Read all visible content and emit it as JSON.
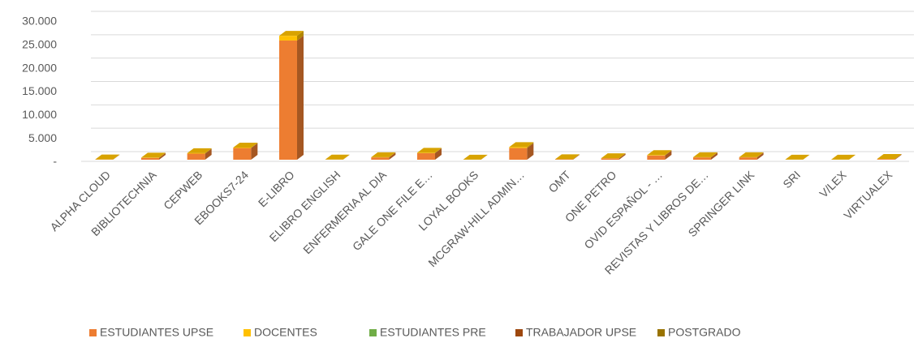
{
  "chart_data": {
    "type": "bar3d_stacked",
    "categories": [
      "ALPHA CLOUD",
      "BIBLIOTECHNIA",
      "CEPWEB",
      "EBOOKS7-24",
      "E-LIBRO",
      "ELIBRO ENGLISH",
      "ENFERMERIA AL DIA",
      "GALE ONE FILE E…",
      "LOYAL BOOKS",
      "MCGRAW-HILL ADMIN…",
      "OMT",
      "ONE PETRO",
      "OVID ESPAÑOL - …",
      "REVISTAS Y LIBROS DE…",
      "SPRINGER LINK",
      "SRI",
      "V/LEX",
      "VIRTUALEX"
    ],
    "series": [
      {
        "name": "ESTUDIANTES UPSE",
        "color": "#ed7d31",
        "values": [
          50,
          400,
          1300,
          2500,
          25500,
          30,
          500,
          1400,
          20,
          2500,
          100,
          300,
          900,
          500,
          500,
          10,
          10,
          150
        ]
      },
      {
        "name": "DOCENTES",
        "color": "#ffc000",
        "values": [
          10,
          50,
          100,
          100,
          1000,
          5,
          50,
          100,
          5,
          200,
          10,
          30,
          100,
          50,
          50,
          5,
          5,
          20
        ]
      },
      {
        "name": "ESTUDIANTES PRE",
        "color": "#70ad47",
        "values": [
          0,
          0,
          0,
          0,
          0,
          0,
          0,
          0,
          0,
          0,
          0,
          0,
          0,
          0,
          0,
          0,
          0,
          0
        ]
      },
      {
        "name": "TRABAJADOR UPSE",
        "color": "#9e480e",
        "values": [
          0,
          0,
          0,
          0,
          0,
          0,
          0,
          0,
          0,
          0,
          0,
          0,
          0,
          0,
          0,
          0,
          0,
          0
        ]
      },
      {
        "name": "POSTGRADO",
        "color": "#997300",
        "values": [
          0,
          0,
          0,
          0,
          0,
          0,
          0,
          0,
          0,
          0,
          0,
          0,
          0,
          0,
          0,
          0,
          0,
          0
        ]
      }
    ],
    "ylim": [
      0,
      30000
    ],
    "yticks": [
      {
        "value": 0,
        "label": "-"
      },
      {
        "value": 5000,
        "label": "5.000"
      },
      {
        "value": 10000,
        "label": "10.000"
      },
      {
        "value": 15000,
        "label": "15.000"
      },
      {
        "value": 20000,
        "label": "20.000"
      },
      {
        "value": 25000,
        "label": "25.000"
      },
      {
        "value": 30000,
        "label": "30.000"
      }
    ],
    "grid": true,
    "legend": "bottom"
  }
}
